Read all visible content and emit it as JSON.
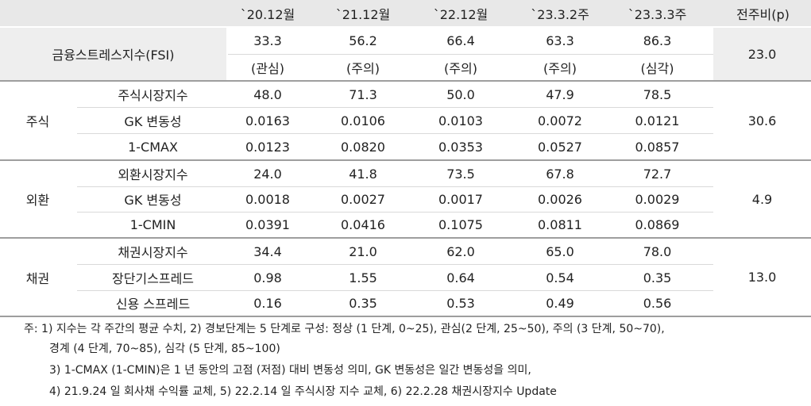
{
  "header": {
    "columns": [
      "`20.12월",
      "`21.12월",
      "`22.12월",
      "`23.3.2주",
      "`23.3.3주",
      "전주비(p)"
    ]
  },
  "fsi": {
    "label": "금융스트레스지수(FSI)",
    "values": [
      "33.3",
      "56.2",
      "66.4",
      "63.3",
      "86.3"
    ],
    "stages": [
      "(관심)",
      "(주의)",
      "(주의)",
      "(주의)",
      "(심각)"
    ],
    "change": "23.0"
  },
  "groups": [
    {
      "name": "주식",
      "change": "30.6",
      "rows": [
        {
          "label": "주식시장지수",
          "values": [
            "48.0",
            "71.3",
            "50.0",
            "47.9",
            "78.5"
          ]
        },
        {
          "label": "GK 변동성",
          "values": [
            "0.0163",
            "0.0106",
            "0.0103",
            "0.0072",
            "0.0121"
          ]
        },
        {
          "label": "1-CMAX",
          "values": [
            "0.0123",
            "0.0820",
            "0.0353",
            "0.0527",
            "0.0857"
          ]
        }
      ]
    },
    {
      "name": "외환",
      "change": "4.9",
      "rows": [
        {
          "label": "외환시장지수",
          "values": [
            "24.0",
            "41.8",
            "73.5",
            "67.8",
            "72.7"
          ]
        },
        {
          "label": "GK 변동성",
          "values": [
            "0.0018",
            "0.0027",
            "0.0017",
            "0.0026",
            "0.0029"
          ]
        },
        {
          "label": "1-CMIN",
          "values": [
            "0.0391",
            "0.0416",
            "0.1075",
            "0.0811",
            "0.0869"
          ]
        }
      ]
    },
    {
      "name": "채권",
      "change": "13.0",
      "rows": [
        {
          "label": "채권시장지수",
          "values": [
            "34.4",
            "21.0",
            "62.0",
            "65.0",
            "78.0"
          ]
        },
        {
          "label": "장단기스프레드",
          "values": [
            "0.98",
            "1.55",
            "0.64",
            "0.54",
            "0.35"
          ]
        },
        {
          "label": "신용 스프레드",
          "values": [
            "0.16",
            "0.35",
            "0.53",
            "0.49",
            "0.56"
          ]
        }
      ]
    }
  ],
  "notes": [
    "주: 1) 지수는 각 주간의 평균 수치, 2) 경보단계는 5 단계로 구성: 정상 (1 단계, 0~25), 관심(2 단계, 25~50), 주의 (3 단계, 50~70),",
    "경계 (4 단계, 70~85), 심각 (5 단계, 85~100)",
    "3) 1-CMAX (1-CMIN)은 1 년 동안의 고점 (저점) 대비 변동성 의미, GK 변동성은 일간 변동성을 의미,",
    "4) 21.9.24 일 회사채 수익률 교체, 5) 22.2.14 일 주식시장 지수 교체, 6) 22.2.28 채권시장지수 Update"
  ]
}
